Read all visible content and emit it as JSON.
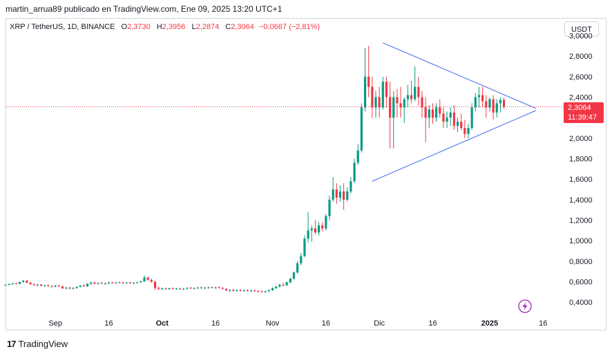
{
  "caption": "martin_arrua89 publicado en TradingView.com, Ene 09, 2025 13:20 UTC+1",
  "legend": {
    "symbol": "XRP / TetherUS, 1D, BINANCE",
    "o_label": "O",
    "o_value": "2,3730",
    "h_label": "H",
    "h_value": "2,3956",
    "l_label": "L",
    "l_value": "2,2874",
    "c_label": "C",
    "c_value": "2,3064",
    "change": "−0,0667 (−2,81%)"
  },
  "currency_button": "USDT",
  "last_price": {
    "price": "2,3064",
    "countdown": "11:39:47"
  },
  "footer": {
    "logo_mark": "17",
    "logo_text": "TradingView"
  },
  "colors": {
    "up": "#089981",
    "down": "#f23645",
    "trendline": "#5b7ff0",
    "price_line": "#f23645",
    "axis_text": "#131722",
    "lightning": "#9c27b0"
  },
  "icons": {
    "flash": "lightning-icon"
  },
  "chart_data": {
    "type": "candlestick",
    "title": "XRP / TetherUS, 1D, BINANCE",
    "ylim": [
      0.28,
      2.97
    ],
    "y_ticks": [
      {
        "value": 0.4,
        "label": "0,4000"
      },
      {
        "value": 0.6,
        "label": "0,6000"
      },
      {
        "value": 0.8,
        "label": "0,8000"
      },
      {
        "value": 1.0,
        "label": "1,0000"
      },
      {
        "value": 1.2,
        "label": "1,2000"
      },
      {
        "value": 1.4,
        "label": "1,4000"
      },
      {
        "value": 1.6,
        "label": "1,6000"
      },
      {
        "value": 1.8,
        "label": "1,8000"
      },
      {
        "value": 2.0,
        "label": "2,0000"
      },
      {
        "value": 2.2,
        "label": "2,2000"
      },
      {
        "value": 2.4,
        "label": "2,4000"
      },
      {
        "value": 2.6,
        "label": "2,6000"
      },
      {
        "value": 2.8,
        "label": "2,8000"
      },
      {
        "value": 3.0,
        "label": "3,0000"
      }
    ],
    "x_ticks": [
      {
        "date": "2024-09-01",
        "label": "Sep"
      },
      {
        "date": "2024-09-16",
        "label": "16"
      },
      {
        "date": "2024-10-01",
        "label": "Oct",
        "bold": true
      },
      {
        "date": "2024-10-16",
        "label": "16"
      },
      {
        "date": "2024-11-01",
        "label": "Nov"
      },
      {
        "date": "2024-11-16",
        "label": "16"
      },
      {
        "date": "2024-12-01",
        "label": "Dic"
      },
      {
        "date": "2024-12-16",
        "label": "16"
      },
      {
        "date": "2025-01-01",
        "label": "2025",
        "bold": true
      },
      {
        "date": "2025-01-16",
        "label": "16"
      }
    ],
    "xlim": [
      "2024-08-18",
      "2025-01-21"
    ],
    "current_price": 2.3064,
    "trendlines": [
      {
        "from": {
          "date": "2024-12-02",
          "value": 2.93
        },
        "to": {
          "date": "2025-01-14",
          "value": 2.29
        }
      },
      {
        "from": {
          "date": "2024-11-29",
          "value": 1.58
        },
        "to": {
          "date": "2025-01-14",
          "value": 2.27
        }
      }
    ],
    "start_date": "2024-08-18",
    "candles": [
      [
        0.565,
        0.572,
        0.56,
        0.57
      ],
      [
        0.57,
        0.582,
        0.565,
        0.578
      ],
      [
        0.578,
        0.588,
        0.57,
        0.584
      ],
      [
        0.584,
        0.592,
        0.576,
        0.58
      ],
      [
        0.58,
        0.602,
        0.575,
        0.598
      ],
      [
        0.598,
        0.618,
        0.59,
        0.61
      ],
      [
        0.61,
        0.62,
        0.585,
        0.59
      ],
      [
        0.59,
        0.598,
        0.57,
        0.575
      ],
      [
        0.575,
        0.585,
        0.56,
        0.568
      ],
      [
        0.568,
        0.58,
        0.555,
        0.572
      ],
      [
        0.572,
        0.578,
        0.555,
        0.56
      ],
      [
        0.56,
        0.57,
        0.548,
        0.565
      ],
      [
        0.565,
        0.575,
        0.552,
        0.558
      ],
      [
        0.558,
        0.566,
        0.545,
        0.552
      ],
      [
        0.552,
        0.568,
        0.545,
        0.562
      ],
      [
        0.562,
        0.572,
        0.55,
        0.555
      ],
      [
        0.555,
        0.56,
        0.53,
        0.535
      ],
      [
        0.535,
        0.548,
        0.525,
        0.542
      ],
      [
        0.542,
        0.55,
        0.528,
        0.532
      ],
      [
        0.532,
        0.545,
        0.525,
        0.54
      ],
      [
        0.54,
        0.555,
        0.532,
        0.55
      ],
      [
        0.55,
        0.568,
        0.545,
        0.562
      ],
      [
        0.562,
        0.575,
        0.55,
        0.555
      ],
      [
        0.555,
        0.585,
        0.55,
        0.58
      ],
      [
        0.58,
        0.6,
        0.57,
        0.592
      ],
      [
        0.592,
        0.6,
        0.575,
        0.58
      ],
      [
        0.58,
        0.592,
        0.572,
        0.588
      ],
      [
        0.588,
        0.598,
        0.578,
        0.582
      ],
      [
        0.582,
        0.592,
        0.57,
        0.585
      ],
      [
        0.585,
        0.6,
        0.575,
        0.592
      ],
      [
        0.592,
        0.6,
        0.582,
        0.588
      ],
      [
        0.588,
        0.598,
        0.578,
        0.594
      ],
      [
        0.594,
        0.602,
        0.584,
        0.59
      ],
      [
        0.59,
        0.6,
        0.58,
        0.586
      ],
      [
        0.586,
        0.596,
        0.578,
        0.592
      ],
      [
        0.592,
        0.598,
        0.58,
        0.584
      ],
      [
        0.584,
        0.594,
        0.575,
        0.59
      ],
      [
        0.59,
        0.6,
        0.582,
        0.596
      ],
      [
        0.596,
        0.61,
        0.588,
        0.604
      ],
      [
        0.604,
        0.66,
        0.598,
        0.64
      ],
      [
        0.64,
        0.65,
        0.61,
        0.618
      ],
      [
        0.618,
        0.63,
        0.59,
        0.6
      ],
      [
        0.6,
        0.61,
        0.52,
        0.54
      ],
      [
        0.54,
        0.55,
        0.52,
        0.53
      ],
      [
        0.53,
        0.54,
        0.518,
        0.535
      ],
      [
        0.535,
        0.545,
        0.522,
        0.528
      ],
      [
        0.528,
        0.54,
        0.52,
        0.536
      ],
      [
        0.536,
        0.545,
        0.525,
        0.53
      ],
      [
        0.53,
        0.54,
        0.52,
        0.534
      ],
      [
        0.534,
        0.542,
        0.522,
        0.526
      ],
      [
        0.526,
        0.538,
        0.518,
        0.532
      ],
      [
        0.532,
        0.545,
        0.525,
        0.54
      ],
      [
        0.54,
        0.55,
        0.53,
        0.534
      ],
      [
        0.534,
        0.545,
        0.525,
        0.538
      ],
      [
        0.538,
        0.548,
        0.528,
        0.544
      ],
      [
        0.544,
        0.552,
        0.532,
        0.536
      ],
      [
        0.536,
        0.548,
        0.528,
        0.542
      ],
      [
        0.542,
        0.552,
        0.532,
        0.546
      ],
      [
        0.546,
        0.556,
        0.536,
        0.54
      ],
      [
        0.54,
        0.55,
        0.53,
        0.545
      ],
      [
        0.545,
        0.555,
        0.535,
        0.538
      ],
      [
        0.538,
        0.548,
        0.525,
        0.53
      ],
      [
        0.53,
        0.538,
        0.51,
        0.515
      ],
      [
        0.515,
        0.525,
        0.495,
        0.52
      ],
      [
        0.52,
        0.53,
        0.505,
        0.51
      ],
      [
        0.51,
        0.525,
        0.5,
        0.518
      ],
      [
        0.518,
        0.528,
        0.505,
        0.512
      ],
      [
        0.512,
        0.522,
        0.5,
        0.516
      ],
      [
        0.516,
        0.526,
        0.504,
        0.51
      ],
      [
        0.51,
        0.52,
        0.498,
        0.514
      ],
      [
        0.514,
        0.524,
        0.502,
        0.508
      ],
      [
        0.508,
        0.518,
        0.496,
        0.505
      ],
      [
        0.505,
        0.515,
        0.494,
        0.5
      ],
      [
        0.5,
        0.512,
        0.492,
        0.508
      ],
      [
        0.508,
        0.522,
        0.5,
        0.518
      ],
      [
        0.518,
        0.545,
        0.51,
        0.538
      ],
      [
        0.538,
        0.56,
        0.53,
        0.552
      ],
      [
        0.552,
        0.58,
        0.545,
        0.57
      ],
      [
        0.57,
        0.59,
        0.555,
        0.565
      ],
      [
        0.565,
        0.6,
        0.56,
        0.595
      ],
      [
        0.595,
        0.64,
        0.585,
        0.63
      ],
      [
        0.63,
        0.7,
        0.62,
        0.69
      ],
      [
        0.69,
        0.8,
        0.68,
        0.78
      ],
      [
        0.78,
        0.88,
        0.76,
        0.85
      ],
      [
        0.85,
        1.05,
        0.84,
        1.02
      ],
      [
        1.02,
        1.28,
        0.98,
        1.1
      ],
      [
        1.1,
        1.15,
        0.99,
        1.12
      ],
      [
        1.12,
        1.2,
        1.06,
        1.08
      ],
      [
        1.08,
        1.18,
        1.05,
        1.15
      ],
      [
        1.15,
        1.18,
        1.09,
        1.12
      ],
      [
        1.12,
        1.26,
        1.1,
        1.24
      ],
      [
        1.24,
        1.44,
        1.2,
        1.4
      ],
      [
        1.4,
        1.62,
        1.38,
        1.5
      ],
      [
        1.5,
        1.56,
        1.36,
        1.42
      ],
      [
        1.42,
        1.54,
        1.38,
        1.48
      ],
      [
        1.48,
        1.56,
        1.3,
        1.4
      ],
      [
        1.4,
        1.52,
        1.38,
        1.48
      ],
      [
        1.48,
        1.62,
        1.46,
        1.58
      ],
      [
        1.58,
        1.8,
        1.56,
        1.76
      ],
      [
        1.76,
        1.94,
        1.74,
        1.88
      ],
      [
        1.88,
        2.34,
        1.86,
        2.3
      ],
      [
        2.3,
        2.88,
        2.26,
        2.6
      ],
      [
        2.6,
        2.9,
        2.4,
        2.5
      ],
      [
        2.5,
        2.6,
        2.2,
        2.3
      ],
      [
        2.3,
        2.46,
        2.2,
        2.4
      ],
      [
        2.4,
        2.5,
        2.2,
        2.3
      ],
      [
        2.3,
        2.6,
        2.28,
        2.55
      ],
      [
        2.55,
        2.6,
        2.3,
        2.4
      ],
      [
        2.4,
        2.55,
        1.9,
        2.2
      ],
      [
        2.2,
        2.46,
        1.9,
        2.4
      ],
      [
        2.4,
        2.48,
        2.2,
        2.34
      ],
      [
        2.34,
        2.5,
        2.2,
        2.3
      ],
      [
        2.3,
        2.4,
        2.15,
        2.38
      ],
      [
        2.38,
        2.52,
        2.3,
        2.42
      ],
      [
        2.42,
        2.56,
        2.34,
        2.38
      ],
      [
        2.38,
        2.7,
        2.36,
        2.5
      ],
      [
        2.5,
        2.6,
        2.32,
        2.4
      ],
      [
        2.4,
        2.46,
        2.2,
        2.3
      ],
      [
        2.3,
        2.4,
        1.96,
        2.2
      ],
      [
        2.2,
        2.32,
        2.1,
        2.28
      ],
      [
        2.28,
        2.34,
        2.14,
        2.2
      ],
      [
        2.2,
        2.34,
        2.16,
        2.3
      ],
      [
        2.3,
        2.38,
        2.2,
        2.24
      ],
      [
        2.24,
        2.3,
        2.1,
        2.16
      ],
      [
        2.16,
        2.26,
        2.1,
        2.2
      ],
      [
        2.2,
        2.3,
        2.12,
        2.25
      ],
      [
        2.25,
        2.32,
        2.08,
        2.12
      ],
      [
        2.12,
        2.2,
        2.06,
        2.16
      ],
      [
        2.16,
        2.24,
        2.08,
        2.1
      ],
      [
        2.1,
        2.18,
        2.0,
        2.04
      ],
      [
        2.04,
        2.14,
        2.0,
        2.1
      ],
      [
        2.1,
        2.34,
        2.08,
        2.3
      ],
      [
        2.3,
        2.44,
        2.26,
        2.4
      ],
      [
        2.4,
        2.5,
        2.3,
        2.42
      ],
      [
        2.42,
        2.5,
        2.3,
        2.36
      ],
      [
        2.36,
        2.42,
        2.2,
        2.3
      ],
      [
        2.3,
        2.4,
        2.26,
        2.38
      ],
      [
        2.38,
        2.42,
        2.18,
        2.25
      ],
      [
        2.25,
        2.38,
        2.2,
        2.34
      ],
      [
        2.34,
        2.4,
        2.25,
        2.373
      ],
      [
        2.373,
        2.3956,
        2.2874,
        2.3064
      ]
    ]
  }
}
